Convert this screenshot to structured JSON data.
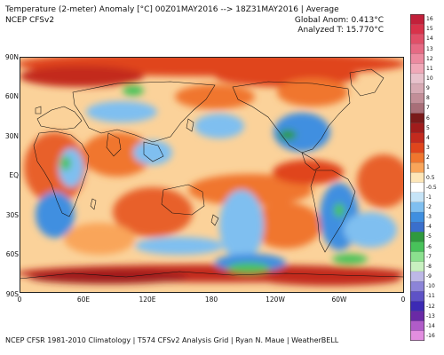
{
  "header": {
    "title": "Temperature (2-meter) Anomaly  [°C] 00Z01MAY2016 --> 18Z31MAY2016 | Average",
    "subtitle": "NCEP CFSv2",
    "global_anom": "Global Anom: 0.413°C",
    "analyzed_t": "Analyzed T: 15.770°C"
  },
  "map": {
    "lat_labels": [
      "90N",
      "60N",
      "30N",
      "EQ",
      "30S",
      "60S",
      "90S"
    ],
    "lon_labels": [
      "0",
      "60E",
      "120E",
      "180",
      "120W",
      "60W",
      "0"
    ]
  },
  "colorbar": {
    "levels": [
      "16",
      "15",
      "14",
      "13",
      "12",
      "11",
      "10",
      "9",
      "8",
      "7",
      "6",
      "5",
      "4",
      "3",
      "2",
      "1",
      "0.5",
      "-0.5",
      "-1",
      "-2",
      "-3",
      "-4",
      "-5",
      "-6",
      "-7",
      "-8",
      "-9",
      "-10",
      "-11",
      "-12",
      "-13",
      "-14",
      "-16"
    ],
    "colors": [
      "#c2203a",
      "#d8324a",
      "#e04f68",
      "#e66a84",
      "#ec8aa0",
      "#f0a8b8",
      "#e8c2cc",
      "#d7aab4",
      "#c28e98",
      "#a86e78",
      "#7a1a1a",
      "#a01c1c",
      "#c32a1e",
      "#e0451c",
      "#f0762e",
      "#f9a55a",
      "#fde6b8",
      "#ffffff",
      "#c6e4f7",
      "#7fbff0",
      "#3f8fe0",
      "#3a6fcc",
      "#2f9a3e",
      "#48c25a",
      "#8be08e",
      "#c8f0c0",
      "#bdb8e6",
      "#8c84d8",
      "#5e52c6",
      "#3c2ab4",
      "#6a2aa6",
      "#b05cc8",
      "#e28ee0"
    ]
  },
  "footer": {
    "text": "NCEP CFSR 1981-2010 Climatology | T574 CFSv2 Analysis Grid | Ryan N. Maue | WeatherBELL"
  }
}
